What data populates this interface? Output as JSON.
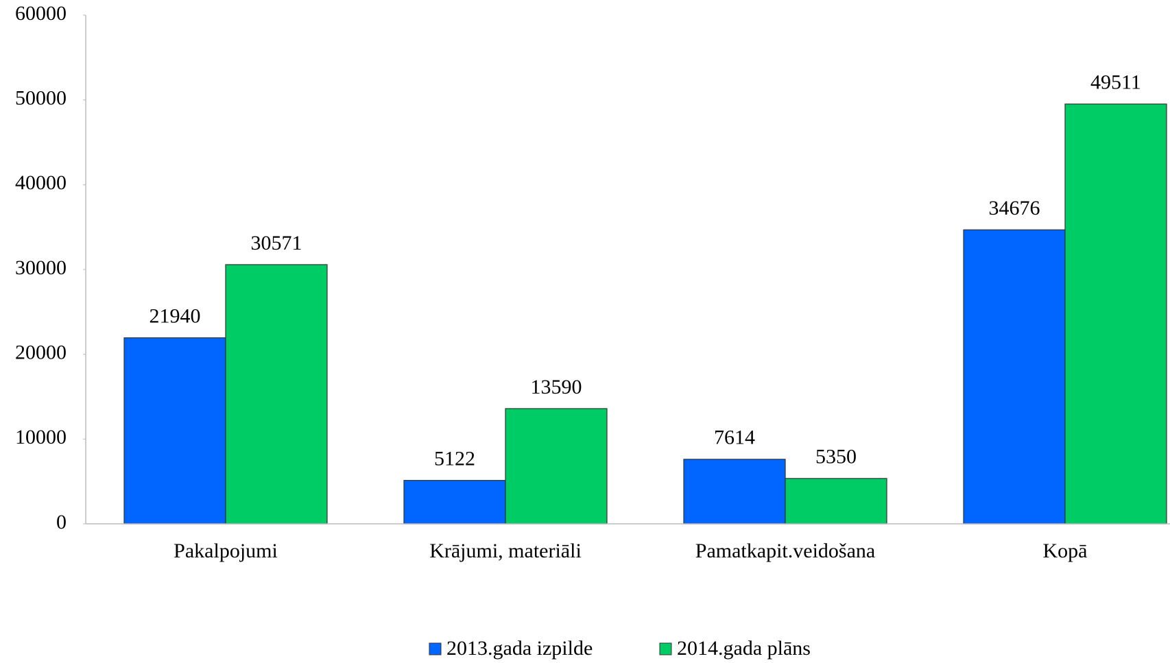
{
  "chart_data": {
    "type": "bar",
    "categories": [
      "Pakalpojumi",
      "Krājumi, materiāli",
      "Pamatkapit.veidošana",
      "Kopā"
    ],
    "series": [
      {
        "name": "2013.gada izpilde",
        "color": "#0066ff",
        "values": [
          21940,
          5122,
          7614,
          34676
        ]
      },
      {
        "name": "2014.gada plāns",
        "color": "#00cc66",
        "values": [
          30571,
          13590,
          5350,
          49511
        ]
      }
    ],
    "ylim": [
      0,
      60000
    ],
    "yticks": [
      0,
      10000,
      20000,
      30000,
      40000,
      50000,
      60000
    ],
    "legend": "bottom"
  }
}
